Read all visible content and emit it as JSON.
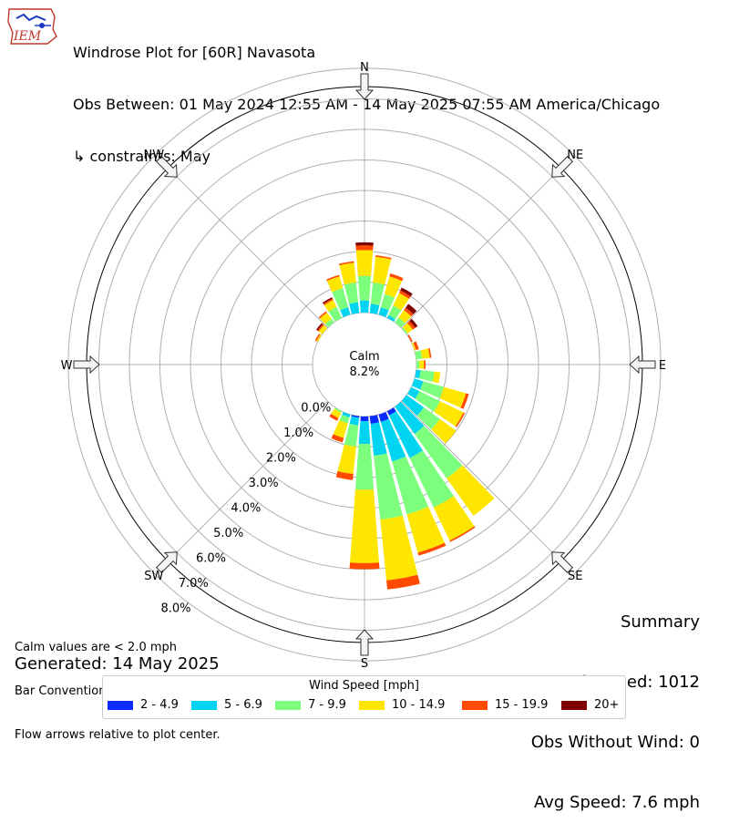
{
  "header": {
    "title_line1": "Windrose Plot for [60R] Navasota",
    "title_line2": "Obs Between: 01 May 2024 12:55 AM - 14 May 2025 07:55 AM America/Chicago",
    "title_line3": "↳ constraints: May",
    "logo_text": "IEM"
  },
  "notes": {
    "line1": "Calm values are < 2.0 mph",
    "line2": "Bar Convention: Meteorology",
    "line3": "Flow arrows relative to plot center.",
    "generated": "Generated: 14 May 2025"
  },
  "summary": {
    "title": "Summary",
    "obs_used": "Obs Used: 1012",
    "obs_without_wind": "Obs Without Wind: 0",
    "avg_speed": "Avg Speed: 7.6 mph"
  },
  "legend": {
    "title": "Wind Speed [mph]",
    "items": [
      {
        "label": "2 - 4.9",
        "color": "#0a2cff"
      },
      {
        "label": "5 - 6.9",
        "color": "#00d4f0"
      },
      {
        "label": "7 - 9.9",
        "color": "#7cff7c"
      },
      {
        "label": "10 - 14.9",
        "color": "#ffe600"
      },
      {
        "label": "15 - 19.9",
        "color": "#ff4a00"
      },
      {
        "label": "20+",
        "color": "#7f0000"
      }
    ]
  },
  "chart_data": {
    "type": "windrose",
    "calm_label": "Calm",
    "calm_value": "8.2%",
    "direction_labels": [
      "N",
      "NE",
      "E",
      "SE",
      "S",
      "SW",
      "W",
      "NW"
    ],
    "radial_labels": [
      "0.0%",
      "1.0%",
      "2.0%",
      "3.0%",
      "4.0%",
      "5.0%",
      "6.0%",
      "7.0%",
      "8.0%"
    ],
    "rmax_percent": 9.1,
    "calm_percent": 1.7,
    "bin_width_deg": 10,
    "series": [
      {
        "name": "2 - 4.9",
        "color": "#0a2cff"
      },
      {
        "name": "5 - 6.9",
        "color": "#00d4f0"
      },
      {
        "name": "7 - 9.9",
        "color": "#7cff7c"
      },
      {
        "name": "10 - 14.9",
        "color": "#ffe600"
      },
      {
        "name": "15 - 19.9",
        "color": "#ff4a00"
      },
      {
        "name": "20+",
        "color": "#7f0000"
      }
    ],
    "directions_deg": [
      0,
      10,
      20,
      30,
      40,
      50,
      60,
      70,
      80,
      90,
      100,
      110,
      120,
      130,
      140,
      150,
      160,
      170,
      180,
      190,
      200,
      210,
      220,
      230,
      240,
      250,
      260,
      270,
      280,
      290,
      300,
      310,
      320,
      330,
      340,
      350
    ],
    "cumulative": [
      [
        1.7,
        2.1,
        2.9,
        3.75,
        3.9,
        4.0
      ],
      [
        1.7,
        2.0,
        2.7,
        3.55,
        3.6,
        3.6
      ],
      [
        1.65,
        1.95,
        2.4,
        3.0,
        3.1,
        3.1
      ],
      [
        1.6,
        1.8,
        2.15,
        2.6,
        2.7,
        2.8
      ],
      [
        1.55,
        1.7,
        1.9,
        2.2,
        2.3,
        2.45
      ],
      [
        1.5,
        1.6,
        1.75,
        1.95,
        2.05,
        2.15
      ],
      [
        1.35,
        1.5,
        1.6,
        1.7,
        1.75,
        1.75
      ],
      [
        1.35,
        1.5,
        1.6,
        1.75,
        1.85,
        1.85
      ],
      [
        1.2,
        1.55,
        1.9,
        2.15,
        2.2,
        2.2
      ],
      [
        1.05,
        1.45,
        1.8,
        1.95,
        2.0,
        2.0
      ],
      [
        1.15,
        1.85,
        2.3,
        2.5,
        2.5,
        2.5
      ],
      [
        1.2,
        2.0,
        2.7,
        3.45,
        3.55,
        3.55
      ],
      [
        1.4,
        2.0,
        2.75,
        3.6,
        3.65,
        3.65
      ],
      [
        1.5,
        2.4,
        3.05,
        3.7,
        3.7,
        3.7
      ],
      [
        1.65,
        2.8,
        4.6,
        6.1,
        6.1,
        6.1
      ],
      [
        1.85,
        3.4,
        5.2,
        6.4,
        6.45,
        6.45
      ],
      [
        1.95,
        3.3,
        5.1,
        6.4,
        6.5,
        6.5
      ],
      [
        1.95,
        3.0,
        5.1,
        7.1,
        7.4,
        7.4
      ],
      [
        1.85,
        2.6,
        4.1,
        6.5,
        6.7,
        6.7
      ],
      [
        1.75,
        2.0,
        2.7,
        3.6,
        3.8,
        3.8
      ],
      [
        1.65,
        1.8,
        2.0,
        2.5,
        2.65,
        2.65
      ],
      [
        1.55,
        1.65,
        1.75,
        1.95,
        2.05,
        2.05
      ],
      [
        1.35,
        1.45,
        1.55,
        1.65,
        1.7,
        1.7
      ],
      [
        1.25,
        1.3,
        1.35,
        1.4,
        1.4,
        1.4
      ],
      [
        1.15,
        1.15,
        1.15,
        1.25,
        1.35,
        1.35
      ],
      [
        1.0,
        1.02,
        1.03,
        1.05,
        1.05,
        1.05
      ],
      [
        0.8,
        0.95,
        0.95,
        1.05,
        1.05,
        1.1
      ],
      [
        0.75,
        0.95,
        1.0,
        1.05,
        1.05,
        1.05
      ],
      [
        0.6,
        0.8,
        1.0,
        1.3,
        1.3,
        1.3
      ],
      [
        0.8,
        1.0,
        1.2,
        1.5,
        1.6,
        1.6
      ],
      [
        1.05,
        1.3,
        1.5,
        1.75,
        1.8,
        1.8
      ],
      [
        1.15,
        1.35,
        1.6,
        1.85,
        1.9,
        1.95
      ],
      [
        1.3,
        1.55,
        1.85,
        2.1,
        2.15,
        2.15
      ],
      [
        1.45,
        1.7,
        2.1,
        2.35,
        2.4,
        2.45
      ],
      [
        1.55,
        1.95,
        2.6,
        3.0,
        3.05,
        3.05
      ],
      [
        1.65,
        2.05,
        2.7,
        3.35,
        3.4,
        3.4
      ]
    ]
  }
}
